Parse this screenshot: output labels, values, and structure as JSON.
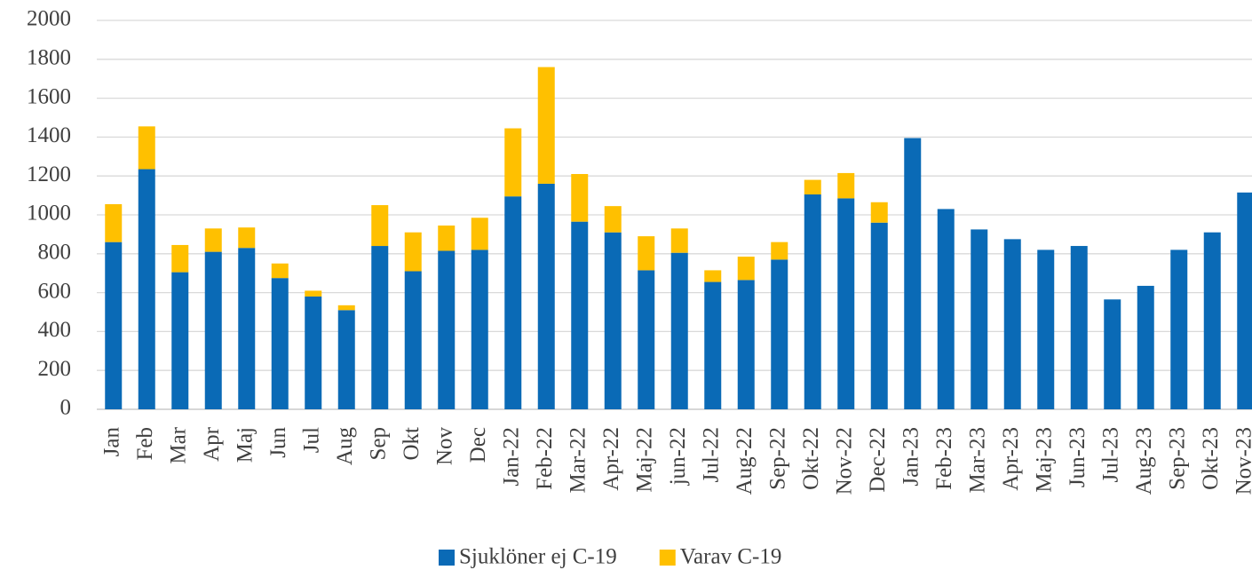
{
  "chart_data": {
    "type": "stacked_bar",
    "categories": [
      "Jan",
      "Feb",
      "Mar",
      "Apr",
      "Maj",
      "Jun",
      "Jul",
      "Aug",
      "Sep",
      "Okt",
      "Nov",
      "Dec",
      "Jan-22",
      "Feb-22",
      "Mar-22",
      "Apr-22",
      "Maj-22",
      "jun-22",
      "Jul-22",
      "Aug-22",
      "Sep-22",
      "Okt-22",
      "Nov-22",
      "Dec-22",
      "Jan-23",
      "Feb-23",
      "Mar-23",
      "Apr-23",
      "Maj-23",
      "Jun-23",
      "Jul-23",
      "Aug-23",
      "Sep-23",
      "Okt-23",
      "Nov-23"
    ],
    "series": [
      {
        "name": "Sjuklöner ej C-19",
        "color": "#0a6ab6",
        "values": [
          860,
          1235,
          705,
          810,
          830,
          675,
          580,
          510,
          840,
          710,
          815,
          820,
          1095,
          1160,
          965,
          910,
          715,
          805,
          655,
          665,
          770,
          1105,
          1085,
          960,
          1395,
          1030,
          925,
          875,
          820,
          840,
          565,
          635,
          820,
          910,
          1115
        ]
      },
      {
        "name": "Varav C-19",
        "color": "#ffc000",
        "values": [
          195,
          220,
          140,
          120,
          105,
          75,
          30,
          25,
          210,
          200,
          130,
          165,
          350,
          600,
          245,
          135,
          175,
          125,
          60,
          120,
          90,
          75,
          130,
          105,
          null,
          null,
          null,
          null,
          null,
          null,
          null,
          null,
          null,
          null,
          null
        ]
      }
    ],
    "ylim": [
      0,
      2000
    ],
    "yticks": [
      0,
      200,
      400,
      600,
      800,
      1000,
      1200,
      1400,
      1600,
      1800,
      2000
    ],
    "grid": true,
    "legend": "bottom"
  }
}
